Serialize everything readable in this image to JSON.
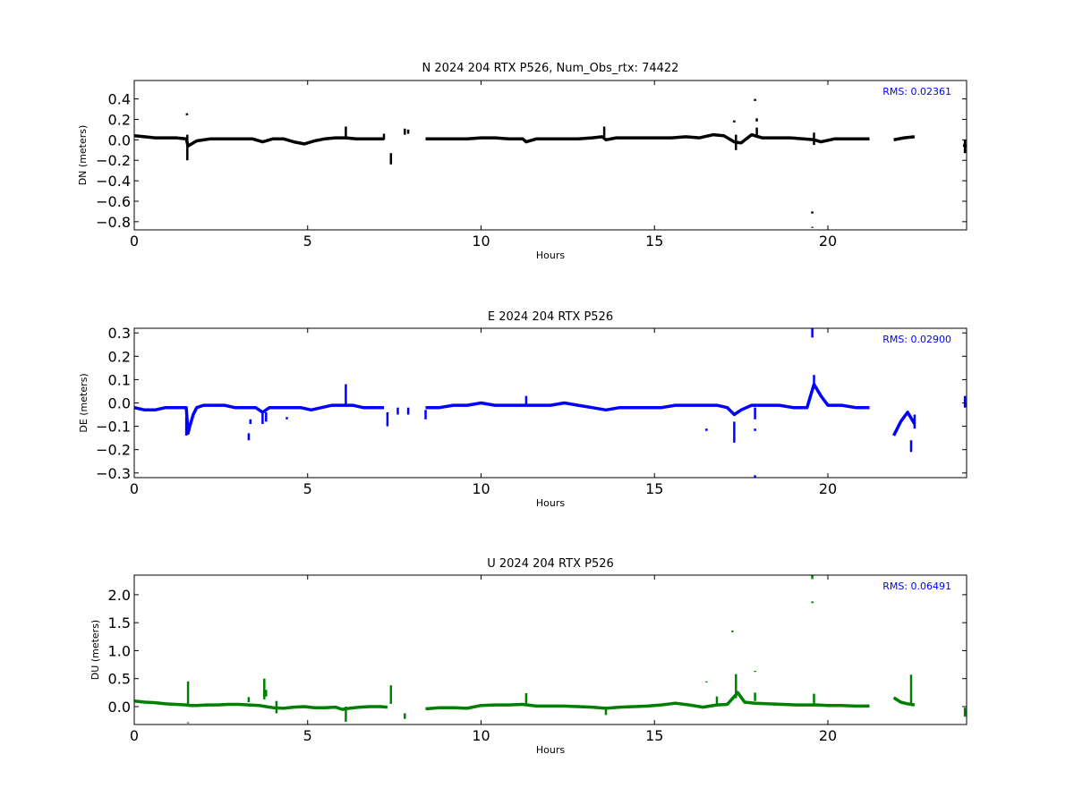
{
  "chart_data": [
    {
      "type": "scatter",
      "title": "N 2024 204 RTX  P526, Num_Obs_rtx: 74422",
      "xlabel": "Hours",
      "ylabel": "DN (meters)",
      "xlim": [
        0,
        24
      ],
      "ylim": [
        -0.88,
        0.58
      ],
      "xticks": [
        0,
        5,
        10,
        15,
        20
      ],
      "yticks": [
        0.4,
        0.2,
        0.0,
        -0.2,
        -0.4,
        -0.6,
        -0.8
      ],
      "ytick_labels": [
        "0.4",
        "0.2",
        "0.0",
        "−0.2",
        "−0.4",
        "−0.6",
        "−0.8"
      ],
      "rms_label": "RMS:  0.02361",
      "color": "#000000",
      "rms_color": "#0000ff",
      "segments": [
        {
          "x": [
            0.0,
            0.3,
            0.6,
            0.9,
            1.2,
            1.5,
            1.55,
            1.6,
            1.8,
            2.2,
            2.6,
            3.0,
            3.4,
            3.7,
            3.8,
            4.0,
            4.3,
            4.6,
            4.9,
            5.2,
            5.5,
            5.8,
            6.1,
            6.4,
            6.8,
            7.2
          ],
          "y": [
            0.04,
            0.03,
            0.02,
            0.02,
            0.02,
            0.01,
            -0.06,
            -0.05,
            -0.01,
            0.01,
            0.01,
            0.01,
            0.01,
            -0.02,
            -0.01,
            0.01,
            0.01,
            -0.02,
            -0.04,
            -0.01,
            0.01,
            0.02,
            0.02,
            0.01,
            0.01,
            0.01
          ]
        },
        {
          "x": [
            8.4,
            8.8,
            9.2,
            9.6,
            10.0,
            10.4,
            10.8,
            11.2,
            11.3,
            11.6,
            12.0,
            12.4,
            12.8,
            13.2,
            13.5,
            13.6,
            13.9,
            14.3,
            14.7,
            15.1,
            15.5,
            15.9,
            16.3,
            16.7,
            17.0,
            17.3,
            17.5,
            17.8,
            18.1,
            18.5,
            18.9,
            19.3,
            19.6,
            19.8,
            20.2,
            20.6,
            21.0,
            21.2
          ],
          "y": [
            0.01,
            0.01,
            0.01,
            0.01,
            0.02,
            0.02,
            0.01,
            0.01,
            -0.02,
            0.01,
            0.01,
            0.01,
            0.01,
            0.02,
            0.03,
            0.0,
            0.02,
            0.02,
            0.02,
            0.02,
            0.02,
            0.03,
            0.02,
            0.05,
            0.04,
            -0.02,
            -0.03,
            0.05,
            0.02,
            0.02,
            0.02,
            0.01,
            0.0,
            -0.02,
            0.01,
            0.01,
            0.01,
            0.01
          ]
        },
        {
          "x": [
            21.9,
            22.2,
            22.5
          ],
          "y": [
            0.0,
            0.02,
            0.03
          ]
        },
        {
          "x": [
            23.9,
            24.0
          ],
          "y": [
            -0.05,
            -0.06
          ]
        }
      ],
      "spikes": [
        {
          "x": 1.53,
          "y0": -0.2,
          "y1": 0.05
        },
        {
          "x": 1.52,
          "y0": 0.24,
          "y1": 0.26
        },
        {
          "x": 6.1,
          "y0": 0.02,
          "y1": 0.13
        },
        {
          "x": 7.2,
          "y0": 0.0,
          "y1": 0.06
        },
        {
          "x": 7.4,
          "y0": -0.24,
          "y1": -0.13
        },
        {
          "x": 7.8,
          "y0": 0.05,
          "y1": 0.11
        },
        {
          "x": 7.9,
          "y0": 0.06,
          "y1": 0.1
        },
        {
          "x": 13.55,
          "y0": 0.03,
          "y1": 0.13
        },
        {
          "x": 17.3,
          "y0": 0.17,
          "y1": 0.19
        },
        {
          "x": 17.35,
          "y0": -0.1,
          "y1": 0.05
        },
        {
          "x": 17.9,
          "y0": 0.38,
          "y1": 0.4
        },
        {
          "x": 17.95,
          "y0": 0.18,
          "y1": 0.21
        },
        {
          "x": 17.95,
          "y0": 0.02,
          "y1": 0.12
        },
        {
          "x": 19.55,
          "y0": -0.72,
          "y1": -0.7
        },
        {
          "x": 19.55,
          "y0": -0.86,
          "y1": -0.85
        },
        {
          "x": 19.6,
          "y0": -0.05,
          "y1": 0.07
        },
        {
          "x": 23.95,
          "y0": -0.13,
          "y1": 0.0
        }
      ]
    },
    {
      "type": "scatter",
      "title": "E 2024 204 RTX  P526",
      "xlabel": "Hours",
      "ylabel": "DE (meters)",
      "xlim": [
        0,
        24
      ],
      "ylim": [
        -0.32,
        0.32
      ],
      "xticks": [
        0,
        5,
        10,
        15,
        20
      ],
      "yticks": [
        0.3,
        0.2,
        0.1,
        0.0,
        -0.1,
        -0.2,
        -0.3
      ],
      "ytick_labels": [
        "0.3",
        "0.2",
        "0.1",
        "0.0",
        "−0.1",
        "−0.2",
        "−0.3"
      ],
      "rms_label": "RMS:  0.02900",
      "color": "#0000ff",
      "rms_color": "#0000ff",
      "segments": [
        {
          "x": [
            0.0,
            0.3,
            0.6,
            0.9,
            1.2,
            1.5,
            1.55,
            1.6,
            1.7,
            1.8,
            2.0,
            2.3,
            2.6,
            2.9,
            3.2,
            3.5,
            3.7,
            3.9,
            4.2,
            4.5,
            4.8,
            5.1,
            5.4,
            5.7,
            6.0,
            6.3,
            6.6,
            6.9,
            7.2
          ],
          "y": [
            -0.02,
            -0.03,
            -0.03,
            -0.02,
            -0.02,
            -0.02,
            -0.13,
            -0.1,
            -0.05,
            -0.02,
            -0.01,
            -0.01,
            -0.01,
            -0.02,
            -0.02,
            -0.02,
            -0.04,
            -0.02,
            -0.02,
            -0.02,
            -0.02,
            -0.03,
            -0.02,
            -0.01,
            -0.01,
            -0.01,
            -0.02,
            -0.02,
            -0.02
          ]
        },
        {
          "x": [
            8.4,
            8.8,
            9.2,
            9.6,
            10.0,
            10.4,
            10.8,
            11.2,
            11.6,
            12.0,
            12.4,
            12.8,
            13.2,
            13.6,
            14.0,
            14.4,
            14.8,
            15.2,
            15.6,
            16.0,
            16.4,
            16.8,
            17.1,
            17.3,
            17.5,
            17.8,
            18.2,
            18.6,
            19.0,
            19.4,
            19.6,
            19.8,
            20.0,
            20.4,
            20.8,
            21.2
          ],
          "y": [
            -0.02,
            -0.02,
            -0.01,
            -0.01,
            0.0,
            -0.01,
            -0.01,
            -0.01,
            -0.01,
            -0.01,
            0.0,
            -0.01,
            -0.02,
            -0.03,
            -0.02,
            -0.02,
            -0.02,
            -0.02,
            -0.01,
            -0.01,
            -0.01,
            -0.01,
            -0.02,
            -0.05,
            -0.03,
            -0.01,
            -0.01,
            -0.01,
            -0.02,
            -0.02,
            0.08,
            0.03,
            -0.01,
            -0.01,
            -0.02,
            -0.02
          ]
        },
        {
          "x": [
            21.9,
            22.1,
            22.3,
            22.5
          ],
          "y": [
            -0.14,
            -0.08,
            -0.04,
            -0.09
          ]
        },
        {
          "x": [
            23.95,
            24.0
          ],
          "y": [
            -0.01,
            -0.01
          ]
        }
      ],
      "spikes": [
        {
          "x": 1.5,
          "y0": -0.14,
          "y1": -0.06
        },
        {
          "x": 3.3,
          "y0": -0.16,
          "y1": -0.13
        },
        {
          "x": 3.35,
          "y0": -0.09,
          "y1": -0.07
        },
        {
          "x": 3.7,
          "y0": -0.09,
          "y1": -0.04
        },
        {
          "x": 3.8,
          "y0": -0.08,
          "y1": -0.04
        },
        {
          "x": 4.4,
          "y0": -0.07,
          "y1": -0.06
        },
        {
          "x": 6.1,
          "y0": -0.01,
          "y1": 0.08
        },
        {
          "x": 7.3,
          "y0": -0.1,
          "y1": -0.04
        },
        {
          "x": 7.6,
          "y0": -0.05,
          "y1": -0.02
        },
        {
          "x": 7.9,
          "y0": -0.05,
          "y1": -0.02
        },
        {
          "x": 8.4,
          "y0": -0.07,
          "y1": -0.03
        },
        {
          "x": 11.3,
          "y0": -0.01,
          "y1": 0.03
        },
        {
          "x": 16.5,
          "y0": -0.12,
          "y1": -0.11
        },
        {
          "x": 17.3,
          "y0": -0.17,
          "y1": -0.08
        },
        {
          "x": 17.9,
          "y0": -0.12,
          "y1": -0.11
        },
        {
          "x": 17.9,
          "y0": -0.07,
          "y1": -0.02
        },
        {
          "x": 17.9,
          "y0": -0.32,
          "y1": -0.31
        },
        {
          "x": 19.55,
          "y0": 0.28,
          "y1": 0.32
        },
        {
          "x": 19.6,
          "y0": 0.06,
          "y1": 0.12
        },
        {
          "x": 22.4,
          "y0": -0.21,
          "y1": -0.16
        },
        {
          "x": 22.5,
          "y0": -0.11,
          "y1": -0.05
        },
        {
          "x": 23.95,
          "y0": -0.02,
          "y1": 0.03
        }
      ]
    },
    {
      "type": "scatter",
      "title": "U 2024 204 RTX  P526",
      "xlabel": "Hours",
      "ylabel": "DU (meters)",
      "xlim": [
        0,
        24
      ],
      "ylim": [
        -0.32,
        2.35
      ],
      "xticks": [
        0,
        5,
        10,
        15,
        20
      ],
      "yticks": [
        2.0,
        1.5,
        1.0,
        0.5,
        0.0
      ],
      "ytick_labels": [
        "2.0",
        "1.5",
        "1.0",
        "0.5",
        "0.0"
      ],
      "rms_label": "RMS:  0.06491",
      "color": "#008000",
      "rms_color": "#0000ff",
      "segments": [
        {
          "x": [
            0.0,
            0.3,
            0.6,
            0.9,
            1.2,
            1.5,
            1.6,
            1.8,
            2.1,
            2.4,
            2.7,
            3.0,
            3.3,
            3.6,
            3.8,
            4.0,
            4.3,
            4.6,
            4.9,
            5.2,
            5.5,
            5.8,
            6.0,
            6.2,
            6.5,
            6.8,
            7.1,
            7.3
          ],
          "y": [
            0.1,
            0.08,
            0.07,
            0.05,
            0.04,
            0.03,
            0.02,
            0.02,
            0.03,
            0.03,
            0.04,
            0.04,
            0.03,
            0.02,
            0.0,
            -0.02,
            -0.03,
            -0.01,
            0.0,
            -0.02,
            -0.02,
            -0.01,
            -0.05,
            -0.03,
            -0.01,
            0.0,
            0.0,
            -0.01
          ]
        },
        {
          "x": [
            8.4,
            8.8,
            9.2,
            9.6,
            10.0,
            10.4,
            10.8,
            11.2,
            11.6,
            12.0,
            12.4,
            12.8,
            13.2,
            13.6,
            14.0,
            14.4,
            14.8,
            15.2,
            15.6,
            16.0,
            16.4,
            16.8,
            17.1,
            17.4,
            17.6,
            17.9,
            18.3,
            18.7,
            19.1,
            19.5,
            19.7,
            20.0,
            20.4,
            20.8,
            21.2
          ],
          "y": [
            -0.04,
            -0.02,
            -0.02,
            -0.03,
            0.02,
            0.03,
            0.03,
            0.04,
            0.01,
            0.01,
            0.01,
            0.0,
            -0.01,
            -0.03,
            -0.01,
            0.0,
            0.01,
            0.03,
            0.06,
            0.03,
            -0.01,
            0.03,
            0.04,
            0.25,
            0.08,
            0.06,
            0.05,
            0.04,
            0.03,
            0.03,
            0.03,
            0.02,
            0.02,
            0.01,
            0.01
          ]
        },
        {
          "x": [
            21.9,
            22.1,
            22.3,
            22.5
          ],
          "y": [
            0.16,
            0.08,
            0.05,
            0.03
          ]
        },
        {
          "x": [
            23.95,
            24.0
          ],
          "y": [
            -0.1,
            -0.12
          ]
        }
      ],
      "spikes": [
        {
          "x": 1.55,
          "y0": 0.0,
          "y1": 0.45
        },
        {
          "x": 1.55,
          "y0": -0.3,
          "y1": -0.28
        },
        {
          "x": 3.3,
          "y0": 0.08,
          "y1": 0.17
        },
        {
          "x": 3.75,
          "y0": 0.13,
          "y1": 0.5
        },
        {
          "x": 3.8,
          "y0": 0.18,
          "y1": 0.3
        },
        {
          "x": 4.1,
          "y0": -0.12,
          "y1": 0.1
        },
        {
          "x": 6.1,
          "y0": -0.27,
          "y1": 0.0
        },
        {
          "x": 7.4,
          "y0": 0.05,
          "y1": 0.38
        },
        {
          "x": 7.8,
          "y0": -0.22,
          "y1": -0.12
        },
        {
          "x": 11.3,
          "y0": 0.05,
          "y1": 0.24
        },
        {
          "x": 13.6,
          "y0": -0.15,
          "y1": 0.0
        },
        {
          "x": 16.5,
          "y0": 0.43,
          "y1": 0.45
        },
        {
          "x": 16.8,
          "y0": 0.05,
          "y1": 0.18
        },
        {
          "x": 17.25,
          "y0": 1.33,
          "y1": 1.36
        },
        {
          "x": 17.35,
          "y0": 0.15,
          "y1": 0.58
        },
        {
          "x": 17.9,
          "y0": 0.62,
          "y1": 0.64
        },
        {
          "x": 17.9,
          "y0": 0.1,
          "y1": 0.25
        },
        {
          "x": 19.55,
          "y0": 2.28,
          "y1": 2.35
        },
        {
          "x": 19.55,
          "y0": 1.85,
          "y1": 1.88
        },
        {
          "x": 19.6,
          "y0": 0.05,
          "y1": 0.23
        },
        {
          "x": 22.4,
          "y0": 0.05,
          "y1": 0.57
        },
        {
          "x": 23.95,
          "y0": -0.18,
          "y1": -0.02
        }
      ]
    }
  ]
}
